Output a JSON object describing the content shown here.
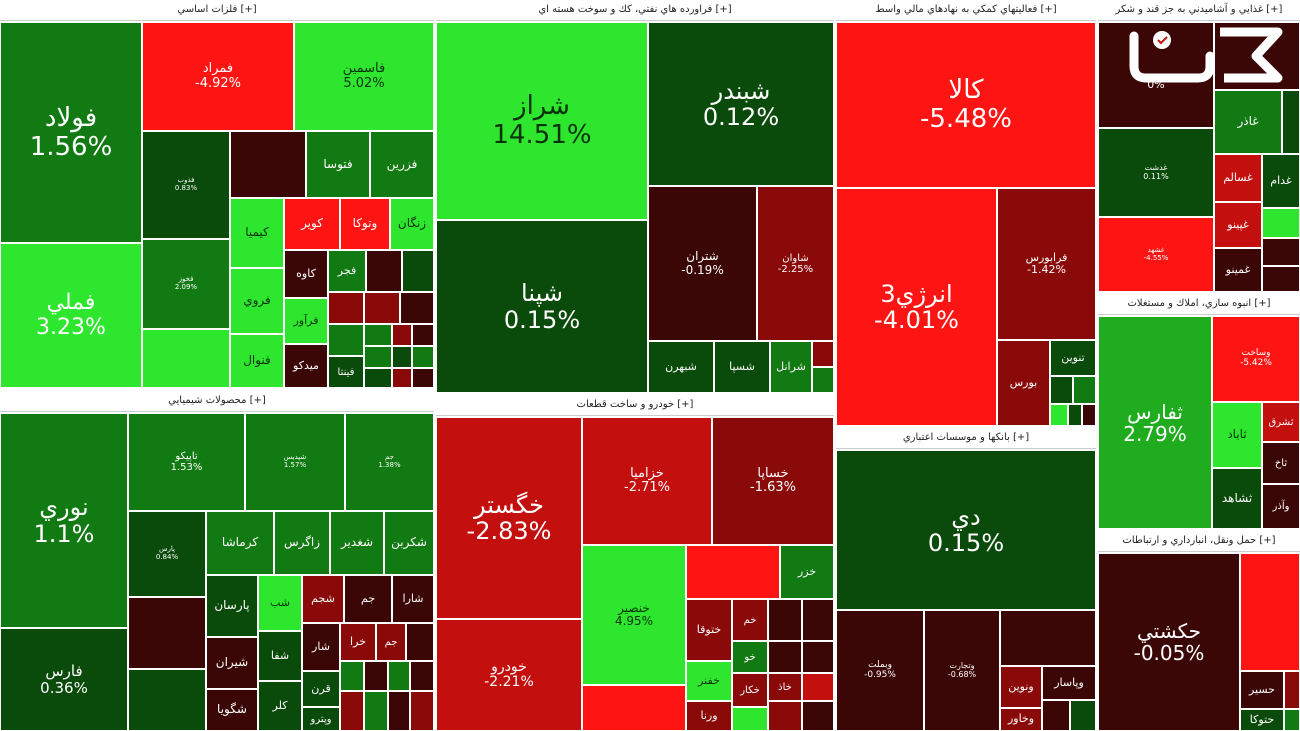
{
  "colors": {
    "dark_red": "#3b0606",
    "red_mid": "#8a0a0a",
    "red": "#c40f0f",
    "bright_red": "#ff1414",
    "dark_green": "#0a4a0a",
    "green_mid": "#127a12",
    "green": "#1fad1f",
    "bright_green": "#2de62d"
  },
  "sectors": [
    {
      "title": "فلزات اساسي [+]"
    },
    {
      "title": "فراورده هاي نفتي، كك و سوخت هسته اي [+]"
    },
    {
      "title": "فعاليتهاي كمكي به نهادهاي مالي واسط [+]"
    },
    {
      "title": "غذايي و آشاميدني به جز قند و شكر [+]"
    },
    {
      "title": "محصولات شيميايي [+]"
    },
    {
      "title": "خودرو و ساخت قطعات [+]"
    },
    {
      "title": "بانكها و موسسات اعتباري [+]"
    },
    {
      "title": "انبوه سازي، املاك و مستغلات [+]"
    },
    {
      "title": "حمل ونقل، انبارداري و ارتباطات [+]"
    }
  ],
  "stocks": {
    "foolad": {
      "name": "فولاد",
      "pct": "1.56%"
    },
    "fameli": {
      "name": "فملي",
      "pct": "3.23%"
    },
    "femrad": {
      "name": "فمراد",
      "pct": "-4.92%"
    },
    "fasmin": {
      "name": "فاسمين",
      "pct": "5.02%"
    },
    "fazar": {
      "name": "فذوب",
      "pct": "0.83%"
    },
    "fetoosa": {
      "name": "فتوسا"
    },
    "fezarin": {
      "name": "فزرين"
    },
    "kimia": {
      "name": "كيميا"
    },
    "kavir": {
      "name": "كوير"
    },
    "vetooka": {
      "name": "وتوكا"
    },
    "zangan": {
      "name": "زنگان"
    },
    "faroo": {
      "name": "فروي"
    },
    "kaveh": {
      "name": "كاوه"
    },
    "fajr": {
      "name": "فجر"
    },
    "fanval": {
      "name": "فنوال"
    },
    "feravar": {
      "name": "فرآور"
    },
    "midko": {
      "name": "ميدكو"
    },
    "fenta": {
      "name": "فينتا"
    },
    "fkhooz": {
      "name": "فخوز",
      "pct": "2.09%"
    },
    "shiraz": {
      "name": "شراز",
      "pct": "14.51%"
    },
    "shebandar": {
      "name": "شبندر",
      "pct": "0.12%"
    },
    "shepna": {
      "name": "شپنا",
      "pct": "0.15%"
    },
    "shetran": {
      "name": "شتران",
      "pct": "-0.19%"
    },
    "shavan": {
      "name": "شاوان",
      "pct": "-2.25%"
    },
    "shebhran": {
      "name": "شبهرن"
    },
    "shesepa": {
      "name": "شسپا"
    },
    "sheranol": {
      "name": "شرانل"
    },
    "kala": {
      "name": "كالا",
      "pct": "-5.48%"
    },
    "energy3": {
      "name": "انرژي3",
      "pct": "-4.01%"
    },
    "farabourse": {
      "name": "فرابورس",
      "pct": "-1.42%"
    },
    "bourse": {
      "name": "بورس"
    },
    "tenvin": {
      "name": "تنوين"
    },
    "ghaza_pct": {
      "pct": "0%"
    },
    "ghazar": {
      "name": "غاذر"
    },
    "ghdasht": {
      "name": "غدشت",
      "pct": "0.11%"
    },
    "ghesalam": {
      "name": "غسالم"
    },
    "ghdam": {
      "name": "غدام"
    },
    "ghpino": {
      "name": "غپينو"
    },
    "ghmino": {
      "name": "غمينو"
    },
    "ghshahd": {
      "name": "غشهد",
      "pct": "-4.55%"
    },
    "noori": {
      "name": "نوري",
      "pct": "1.1%"
    },
    "fars": {
      "name": "فارس",
      "pct": "0.36%"
    },
    "tapiko": {
      "name": "تاپيكو",
      "pct": "1.53%"
    },
    "shepdis": {
      "name": "شپديس",
      "pct": "1.57%"
    },
    "jam": {
      "name": "جم",
      "pct": "1.38%"
    },
    "pars_small": {
      "name": "پارس",
      "pct": "0.84%"
    },
    "kermasha": {
      "name": "كرماشا"
    },
    "zagros": {
      "name": "زاگرس"
    },
    "shghadir": {
      "name": "شغدير"
    },
    "shekarbon": {
      "name": "شكربن"
    },
    "parsan": {
      "name": "پارسان"
    },
    "shiran": {
      "name": "شيران"
    },
    "shegooya": {
      "name": "شگويا"
    },
    "sheshab": {
      "name": "شب"
    },
    "shejam": {
      "name": "شجم"
    },
    "jam2": {
      "name": "جم"
    },
    "shara": {
      "name": "شارا"
    },
    "shefa": {
      "name": "شفا"
    },
    "shar": {
      "name": "شار"
    },
    "khara": {
      "name": "خرا"
    },
    "jam3": {
      "name": "جم"
    },
    "qaran": {
      "name": "قرن"
    },
    "kalar": {
      "name": "كلر"
    },
    "vetro": {
      "name": "وپترو"
    },
    "khegostar": {
      "name": "خگستر",
      "pct": "-2.83%"
    },
    "khodro": {
      "name": "خودرو",
      "pct": "-2.21%"
    },
    "khazamia": {
      "name": "خزاميا",
      "pct": "-2.71%"
    },
    "khesapa": {
      "name": "خساپا",
      "pct": "-1.63%"
    },
    "khenser": {
      "name": "خنصير",
      "pct": "4.95%"
    },
    "khazar": {
      "name": "خزر"
    },
    "khetooqa": {
      "name": "ختوقا"
    },
    "khafanar": {
      "name": "خفنر"
    },
    "vorna": {
      "name": "ورنا"
    },
    "khekar": {
      "name": "خكار"
    },
    "khom": {
      "name": "خم"
    },
    "khoj": {
      "name": "خو"
    },
    "khaz": {
      "name": "خاذ"
    },
    "di": {
      "name": "دي",
      "pct": "0.15%"
    },
    "vebmelat": {
      "name": "وبملت",
      "pct": "-0.95%"
    },
    "vetejarat": {
      "name": "وتجارت",
      "pct": "-0.68%"
    },
    "vepasar": {
      "name": "وپاسار"
    },
    "venvin": {
      "name": "ونوين"
    },
    "vekhavar": {
      "name": "وخاور"
    },
    "tefars": {
      "name": "ثفارس",
      "pct": "2.79%"
    },
    "vesakht": {
      "name": "وساخت",
      "pct": "-5.42%"
    },
    "tabad": {
      "name": "ثاباد"
    },
    "teshahd": {
      "name": "ثشاهد"
    },
    "teshargh": {
      "name": "ثشرق"
    },
    "tekh": {
      "name": "ثاخ"
    },
    "vadar": {
      "name": "وآذر"
    },
    "hekashti": {
      "name": "حكشتي",
      "pct": "-0.05%"
    },
    "hesir": {
      "name": "حسير"
    },
    "hetooka": {
      "name": "حتوكا"
    }
  }
}
